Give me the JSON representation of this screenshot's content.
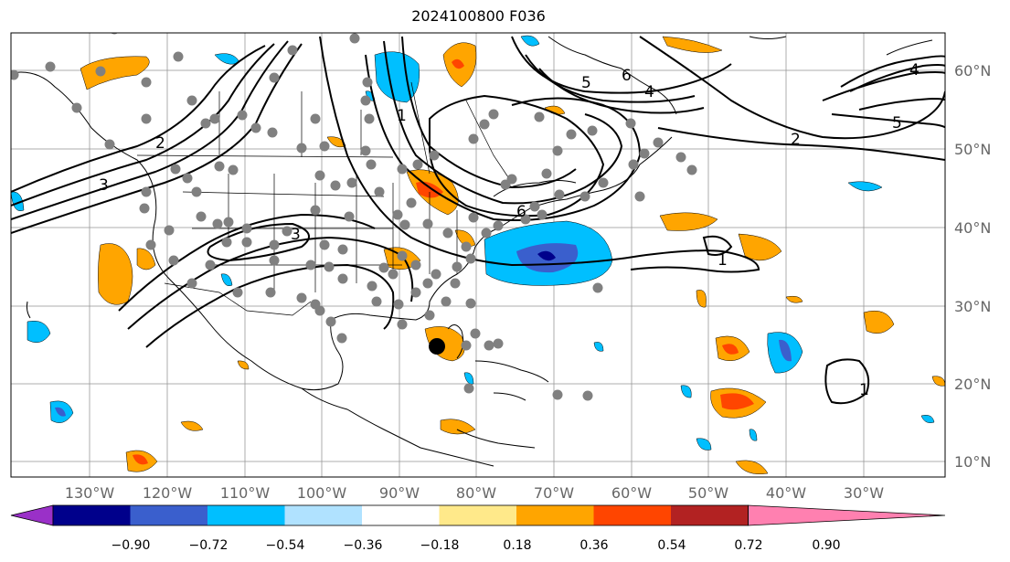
{
  "title": "2024100800 F036",
  "lat_labels": [
    "60°N",
    "50°N",
    "40°N",
    "30°N",
    "20°N",
    "10°N"
  ],
  "lon_labels": [
    "130°W",
    "120°W",
    "110°W",
    "100°W",
    "90°W",
    "80°W",
    "70°W",
    "60°W",
    "50°W",
    "40°W",
    "30°W"
  ],
  "colorbar": {
    "ticks": [
      "−0.90",
      "−0.72",
      "−0.54",
      "−0.36",
      "−0.18",
      "0.18",
      "0.36",
      "0.54",
      "0.72",
      "0.90"
    ],
    "colors": [
      "#9a30c8",
      "#00008b",
      "#3a5fcd",
      "#00bfff",
      "#b0e2ff",
      "#ffffff",
      "#ffe98a",
      "#ffa500",
      "#ff4500",
      "#b22222",
      "#ff80b0"
    ]
  },
  "contour_labels": [
    "1",
    "2",
    "3",
    "4",
    "5",
    "6",
    "1",
    "2",
    "3",
    "4",
    "5",
    "6",
    "1"
  ],
  "colors": {
    "positive_light": "#ffa500",
    "positive_mid": "#ff4500",
    "negative_light": "#00bfff",
    "negative_mid": "#3a5fcd",
    "negative_dark": "#00008b",
    "station": "#808080"
  }
}
